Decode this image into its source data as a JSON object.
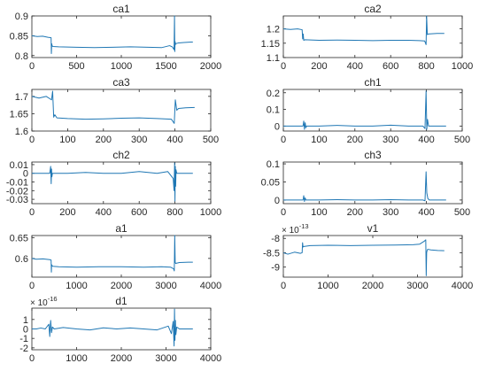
{
  "figure": {
    "accent_color": "#1f77b4"
  },
  "chart_data": [
    {
      "type": "line",
      "title": "ca1",
      "xlim": [
        0,
        2000
      ],
      "ylim": [
        0.795,
        0.9
      ],
      "xticks": [
        0,
        500,
        1000,
        1500,
        2000
      ],
      "yticks": [
        0.8,
        0.85,
        0.9
      ],
      "x_tick_labels": [
        "0",
        "500",
        "1000",
        "1500",
        "2000"
      ],
      "y_tick_labels": [
        "0.8",
        "0.85",
        "0.9"
      ],
      "series": [
        {
          "color": "#1f77b4",
          "x": [
            0,
            60,
            120,
            180,
            215,
            218,
            222,
            226,
            235,
            300,
            500,
            700,
            900,
            1100,
            1300,
            1450,
            1540,
            1570,
            1590,
            1595,
            1598,
            1602,
            1606,
            1610,
            1640,
            1700,
            1780,
            1800
          ],
          "y": [
            0.85,
            0.848,
            0.849,
            0.846,
            0.845,
            0.805,
            0.83,
            0.825,
            0.823,
            0.822,
            0.821,
            0.82,
            0.821,
            0.822,
            0.821,
            0.82,
            0.825,
            0.822,
            0.815,
            0.9,
            0.81,
            0.835,
            0.828,
            0.83,
            0.832,
            0.833,
            0.834,
            0.834
          ]
        }
      ]
    },
    {
      "type": "line",
      "title": "ca2",
      "xlim": [
        0,
        1000
      ],
      "ylim": [
        1.1,
        1.245
      ],
      "xticks": [
        0,
        200,
        400,
        600,
        800,
        1000
      ],
      "yticks": [
        1.1,
        1.15,
        1.2
      ],
      "x_tick_labels": [
        "0",
        "200",
        "400",
        "600",
        "800",
        "1000"
      ],
      "y_tick_labels": [
        "1.1",
        "1.15",
        "1.2"
      ],
      "series": [
        {
          "color": "#1f77b4",
          "x": [
            0,
            40,
            80,
            105,
            108,
            111,
            114,
            120,
            200,
            300,
            400,
            500,
            600,
            700,
            760,
            790,
            798,
            801,
            805,
            810,
            830,
            860,
            900
          ],
          "y": [
            1.2,
            1.198,
            1.2,
            1.197,
            1.165,
            1.182,
            1.16,
            1.162,
            1.16,
            1.161,
            1.16,
            1.159,
            1.16,
            1.16,
            1.159,
            1.158,
            1.145,
            1.245,
            1.18,
            1.182,
            1.183,
            1.184,
            1.184
          ]
        }
      ]
    },
    {
      "type": "line",
      "title": "ca3",
      "xlim": [
        0,
        500
      ],
      "ylim": [
        1.6,
        1.72
      ],
      "xticks": [
        0,
        100,
        200,
        300,
        400,
        500
      ],
      "yticks": [
        1.6,
        1.65,
        1.7
      ],
      "x_tick_labels": [
        "0",
        "100",
        "200",
        "300",
        "400",
        "500"
      ],
      "y_tick_labels": [
        "1.6",
        "1.65",
        "1.7"
      ],
      "series": [
        {
          "color": "#1f77b4",
          "x": [
            0,
            20,
            40,
            55,
            58,
            61,
            64,
            70,
            100,
            150,
            200,
            250,
            300,
            350,
            390,
            398,
            401,
            405,
            410,
            430,
            455
          ],
          "y": [
            1.7,
            1.695,
            1.7,
            1.69,
            1.715,
            1.64,
            1.647,
            1.638,
            1.636,
            1.634,
            1.635,
            1.637,
            1.638,
            1.636,
            1.634,
            1.622,
            1.69,
            1.66,
            1.665,
            1.667,
            1.668
          ]
        }
      ]
    },
    {
      "type": "line",
      "title": "ch1",
      "xlim": [
        0,
        500
      ],
      "ylim": [
        -0.03,
        0.22
      ],
      "xticks": [
        0,
        100,
        200,
        300,
        400,
        500
      ],
      "yticks": [
        0,
        0.1,
        0.2
      ],
      "x_tick_labels": [
        "0",
        "100",
        "200",
        "300",
        "400",
        "500"
      ],
      "y_tick_labels": [
        "0",
        "0.1",
        "0.2"
      ],
      "series": [
        {
          "color": "#1f77b4",
          "x": [
            0,
            30,
            55,
            57,
            59,
            61,
            63,
            65,
            100,
            150,
            200,
            250,
            300,
            350,
            390,
            396,
            399,
            401,
            403,
            406,
            410,
            455
          ],
          "y": [
            0,
            0,
            0,
            0.03,
            -0.02,
            0.02,
            -0.01,
            0,
            0,
            0.004,
            0,
            0,
            0.005,
            0,
            0,
            -0.015,
            0.21,
            -0.02,
            0.04,
            0,
            0,
            0
          ]
        }
      ]
    },
    {
      "type": "line",
      "title": "ch2",
      "xlim": [
        0,
        1000
      ],
      "ylim": [
        -0.035,
        0.013
      ],
      "xticks": [
        0,
        200,
        400,
        600,
        800,
        1000
      ],
      "yticks": [
        -0.03,
        -0.02,
        -0.01,
        0,
        0.01
      ],
      "x_tick_labels": [
        "0",
        "200",
        "400",
        "600",
        "800",
        "1000"
      ],
      "y_tick_labels": [
        "-0.03",
        "-0.02",
        "-0.01",
        "0",
        "0.01"
      ],
      "series": [
        {
          "color": "#1f77b4",
          "x": [
            0,
            50,
            100,
            105,
            108,
            110,
            112,
            115,
            200,
            300,
            400,
            500,
            600,
            700,
            760,
            790,
            795,
            798,
            800,
            802,
            804,
            806,
            810,
            900
          ],
          "y": [
            0,
            0,
            0,
            0.008,
            -0.012,
            0.005,
            -0.004,
            0,
            0,
            0.001,
            0,
            0,
            0.002,
            0,
            0.002,
            -0.006,
            -0.02,
            0.012,
            -0.032,
            0.008,
            -0.015,
            0.004,
            0,
            0
          ]
        }
      ]
    },
    {
      "type": "line",
      "title": "ch3",
      "xlim": [
        0,
        500
      ],
      "ylim": [
        -0.01,
        0.105
      ],
      "xticks": [
        0,
        100,
        200,
        300,
        400,
        500
      ],
      "yticks": [
        0,
        0.05,
        0.1
      ],
      "x_tick_labels": [
        "0",
        "100",
        "200",
        "300",
        "400",
        "500"
      ],
      "y_tick_labels": [
        "0",
        "0.05",
        "0.1"
      ],
      "series": [
        {
          "color": "#1f77b4",
          "x": [
            0,
            30,
            55,
            57,
            59,
            61,
            63,
            100,
            150,
            200,
            250,
            300,
            350,
            390,
            396,
            399,
            401,
            404,
            408,
            455
          ],
          "y": [
            0,
            0,
            0,
            0.012,
            -0.004,
            0.006,
            0,
            0,
            0.001,
            0,
            0,
            0.001,
            0,
            0,
            -0.002,
            0.078,
            0.02,
            0.004,
            0,
            0
          ]
        }
      ]
    },
    {
      "type": "line",
      "title": "a1",
      "xlim": [
        0,
        4000
      ],
      "ylim": [
        0.555,
        0.655
      ],
      "xticks": [
        0,
        1000,
        2000,
        3000,
        4000
      ],
      "yticks": [
        0.6,
        0.65
      ],
      "x_tick_labels": [
        "0",
        "1000",
        "2000",
        "3000",
        "4000"
      ],
      "y_tick_labels": [
        "0.6",
        "0.65"
      ],
      "series": [
        {
          "color": "#1f77b4",
          "x": [
            0,
            100,
            250,
            400,
            430,
            436,
            442,
            450,
            470,
            600,
            1000,
            1500,
            2000,
            2500,
            2900,
            3100,
            3170,
            3185,
            3195,
            3205,
            3215,
            3300,
            3500,
            3600
          ],
          "y": [
            0.6,
            0.598,
            0.599,
            0.597,
            0.596,
            0.567,
            0.585,
            0.583,
            0.581,
            0.58,
            0.579,
            0.58,
            0.58,
            0.579,
            0.58,
            0.579,
            0.575,
            0.57,
            0.655,
            0.59,
            0.588,
            0.59,
            0.591,
            0.591
          ]
        }
      ]
    },
    {
      "type": "line",
      "title": "v1",
      "xlim": [
        0,
        4000
      ],
      "ylim": [
        -9.35,
        -7.9
      ],
      "xticks": [
        0,
        1000,
        2000,
        3000,
        4000
      ],
      "yticks": [
        -9,
        -8.5,
        -8
      ],
      "x_tick_labels": [
        "0",
        "1000",
        "2000",
        "3000",
        "4000"
      ],
      "y_tick_labels": [
        "-9",
        "-8.5",
        "-8"
      ],
      "exponent": {
        "base": "× 10",
        "power": "-13"
      },
      "series": [
        {
          "color": "#1f77b4",
          "x": [
            0,
            100,
            250,
            380,
            420,
            430,
            440,
            460,
            600,
            1000,
            1500,
            2000,
            2500,
            2900,
            3050,
            3150,
            3185,
            3195,
            3205,
            3215,
            3230,
            3300,
            3450,
            3600
          ],
          "y": [
            -8.5,
            -8.55,
            -8.48,
            -8.52,
            -8.5,
            -8.15,
            -8.3,
            -8.28,
            -8.25,
            -8.24,
            -8.25,
            -8.24,
            -8.23,
            -8.22,
            -8.2,
            -8.1,
            -8.05,
            -9.3,
            -8.5,
            -8.42,
            -8.38,
            -8.4,
            -8.42,
            -8.43
          ]
        }
      ]
    },
    {
      "type": "line",
      "title": "d1",
      "xlim": [
        0,
        4000
      ],
      "ylim": [
        -2.2,
        2.2
      ],
      "xticks": [
        0,
        1000,
        2000,
        3000,
        4000
      ],
      "yticks": [
        -2,
        -1,
        0,
        1
      ],
      "x_tick_labels": [
        "0",
        "1000",
        "2000",
        "3000",
        "4000"
      ],
      "y_tick_labels": [
        "-2",
        "-1",
        "0",
        "1"
      ],
      "exponent": {
        "base": "× 10",
        "power": "-16"
      },
      "series": [
        {
          "color": "#1f77b4",
          "x": [
            0,
            100,
            200,
            300,
            380,
            400,
            420,
            440,
            460,
            500,
            700,
            1000,
            1300,
            1600,
            1900,
            2200,
            2500,
            2800,
            3050,
            3120,
            3160,
            3180,
            3190,
            3200,
            3210,
            3220,
            3240,
            3300,
            3600
          ],
          "y": [
            0,
            0,
            0.1,
            0,
            0.5,
            -0.8,
            0.9,
            -0.4,
            0.2,
            0,
            0.15,
            0,
            -0.1,
            0.12,
            0,
            0.1,
            0,
            -0.1,
            0.3,
            -0.5,
            0.8,
            -1.8,
            2.1,
            -1.2,
            0.9,
            -0.6,
            0.2,
            0,
            0
          ]
        }
      ]
    }
  ]
}
